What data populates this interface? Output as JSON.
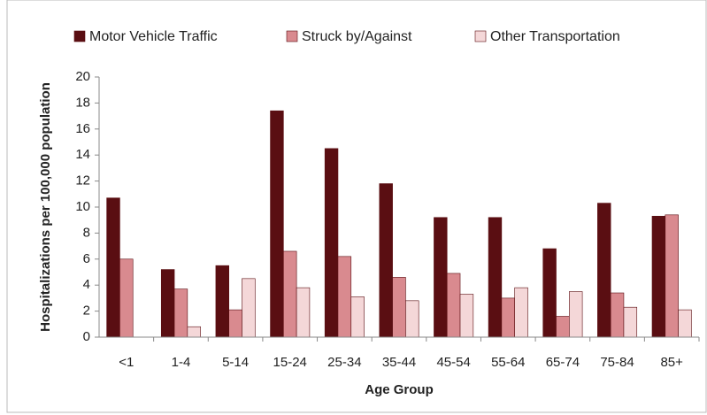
{
  "chart_data": {
    "type": "bar",
    "ylabel": "Hospitalizations per 100,000 population",
    "xlabel": "Age Group",
    "categories": [
      "<1",
      "1-4",
      "5-14",
      "15-24",
      "25-34",
      "35-44",
      "45-54",
      "55-64",
      "65-74",
      "75-84",
      "85+"
    ],
    "series": [
      {
        "name": "Motor Vehicle Traffic",
        "color": "#5a0e12",
        "values": [
          10.7,
          5.2,
          5.5,
          17.4,
          14.5,
          11.8,
          9.2,
          9.2,
          6.8,
          10.3,
          9.3
        ]
      },
      {
        "name": "Struck by/Against",
        "color": "#d98a8f",
        "values": [
          6.0,
          3.7,
          2.1,
          6.6,
          6.2,
          4.6,
          4.9,
          3.0,
          1.6,
          3.4,
          9.4
        ]
      },
      {
        "name": "Other Transportation",
        "color": "#f4d7d8",
        "values": [
          0,
          0.8,
          4.5,
          3.8,
          3.1,
          2.8,
          3.3,
          3.8,
          3.5,
          2.3,
          2.1
        ]
      }
    ],
    "ylim": [
      0,
      20
    ],
    "yticks": [
      0,
      2,
      4,
      6,
      8,
      10,
      12,
      14,
      16,
      18,
      20
    ],
    "legend": "top"
  }
}
